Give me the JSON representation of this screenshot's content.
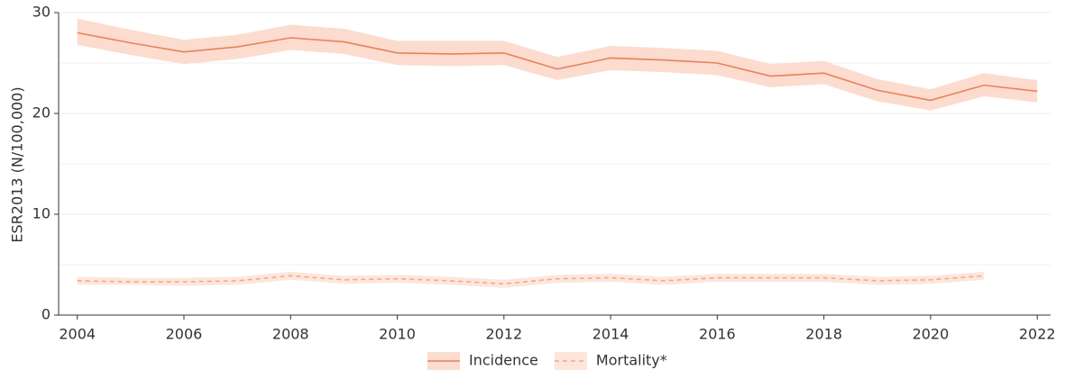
{
  "chart_data": {
    "type": "line",
    "y_label": "ESR2013 (N/100,000)",
    "x": [
      2004,
      2005,
      2006,
      2007,
      2008,
      2009,
      2010,
      2011,
      2012,
      2013,
      2014,
      2015,
      2016,
      2017,
      2018,
      2019,
      2020,
      2021,
      2022
    ],
    "xlim": [
      2003.65,
      2022.25
    ],
    "xticks": [
      2004,
      2006,
      2008,
      2010,
      2012,
      2014,
      2016,
      2018,
      2020,
      2022
    ],
    "ylim": [
      0,
      30
    ],
    "yticks": [
      0,
      10,
      20,
      30
    ],
    "minor_grid_yticks": [
      5,
      15,
      25
    ],
    "grid": true,
    "legend": "bottom",
    "series": [
      {
        "name": "Incidence",
        "color": "#e8825c",
        "band_color": "#fbdccf",
        "line_style": "solid",
        "values": [
          28.0,
          27.0,
          26.1,
          26.6,
          27.5,
          27.1,
          26.0,
          25.9,
          26.0,
          24.4,
          25.5,
          25.3,
          25.0,
          23.7,
          24.0,
          22.3,
          21.3,
          22.8,
          22.2
        ],
        "lower": [
          26.8,
          25.8,
          24.9,
          25.4,
          26.3,
          25.9,
          24.8,
          24.7,
          24.8,
          23.3,
          24.3,
          24.1,
          23.8,
          22.6,
          22.9,
          21.2,
          20.3,
          21.7,
          21.1
        ],
        "upper": [
          29.4,
          28.3,
          27.3,
          27.8,
          28.8,
          28.4,
          27.2,
          27.2,
          27.2,
          25.6,
          26.7,
          26.5,
          26.2,
          24.9,
          25.2,
          23.4,
          22.4,
          24.0,
          23.3
        ]
      },
      {
        "name": "Mortality*",
        "color": "#f2a98c",
        "band_color": "#fde6dc",
        "line_style": "dashed",
        "values": [
          3.4,
          3.3,
          3.3,
          3.4,
          3.9,
          3.5,
          3.6,
          3.4,
          3.1,
          3.6,
          3.7,
          3.4,
          3.7,
          3.7,
          3.7,
          3.4,
          3.5,
          3.9,
          null
        ],
        "lower": [
          3.0,
          3.0,
          2.9,
          3.0,
          3.5,
          3.1,
          3.2,
          3.0,
          2.7,
          3.2,
          3.3,
          3.0,
          3.3,
          3.3,
          3.3,
          3.0,
          3.1,
          3.5,
          null
        ],
        "upper": [
          3.8,
          3.7,
          3.7,
          3.8,
          4.3,
          3.9,
          4.0,
          3.8,
          3.5,
          4.0,
          4.1,
          3.8,
          4.1,
          4.1,
          4.1,
          3.8,
          3.9,
          4.3,
          null
        ]
      }
    ]
  }
}
